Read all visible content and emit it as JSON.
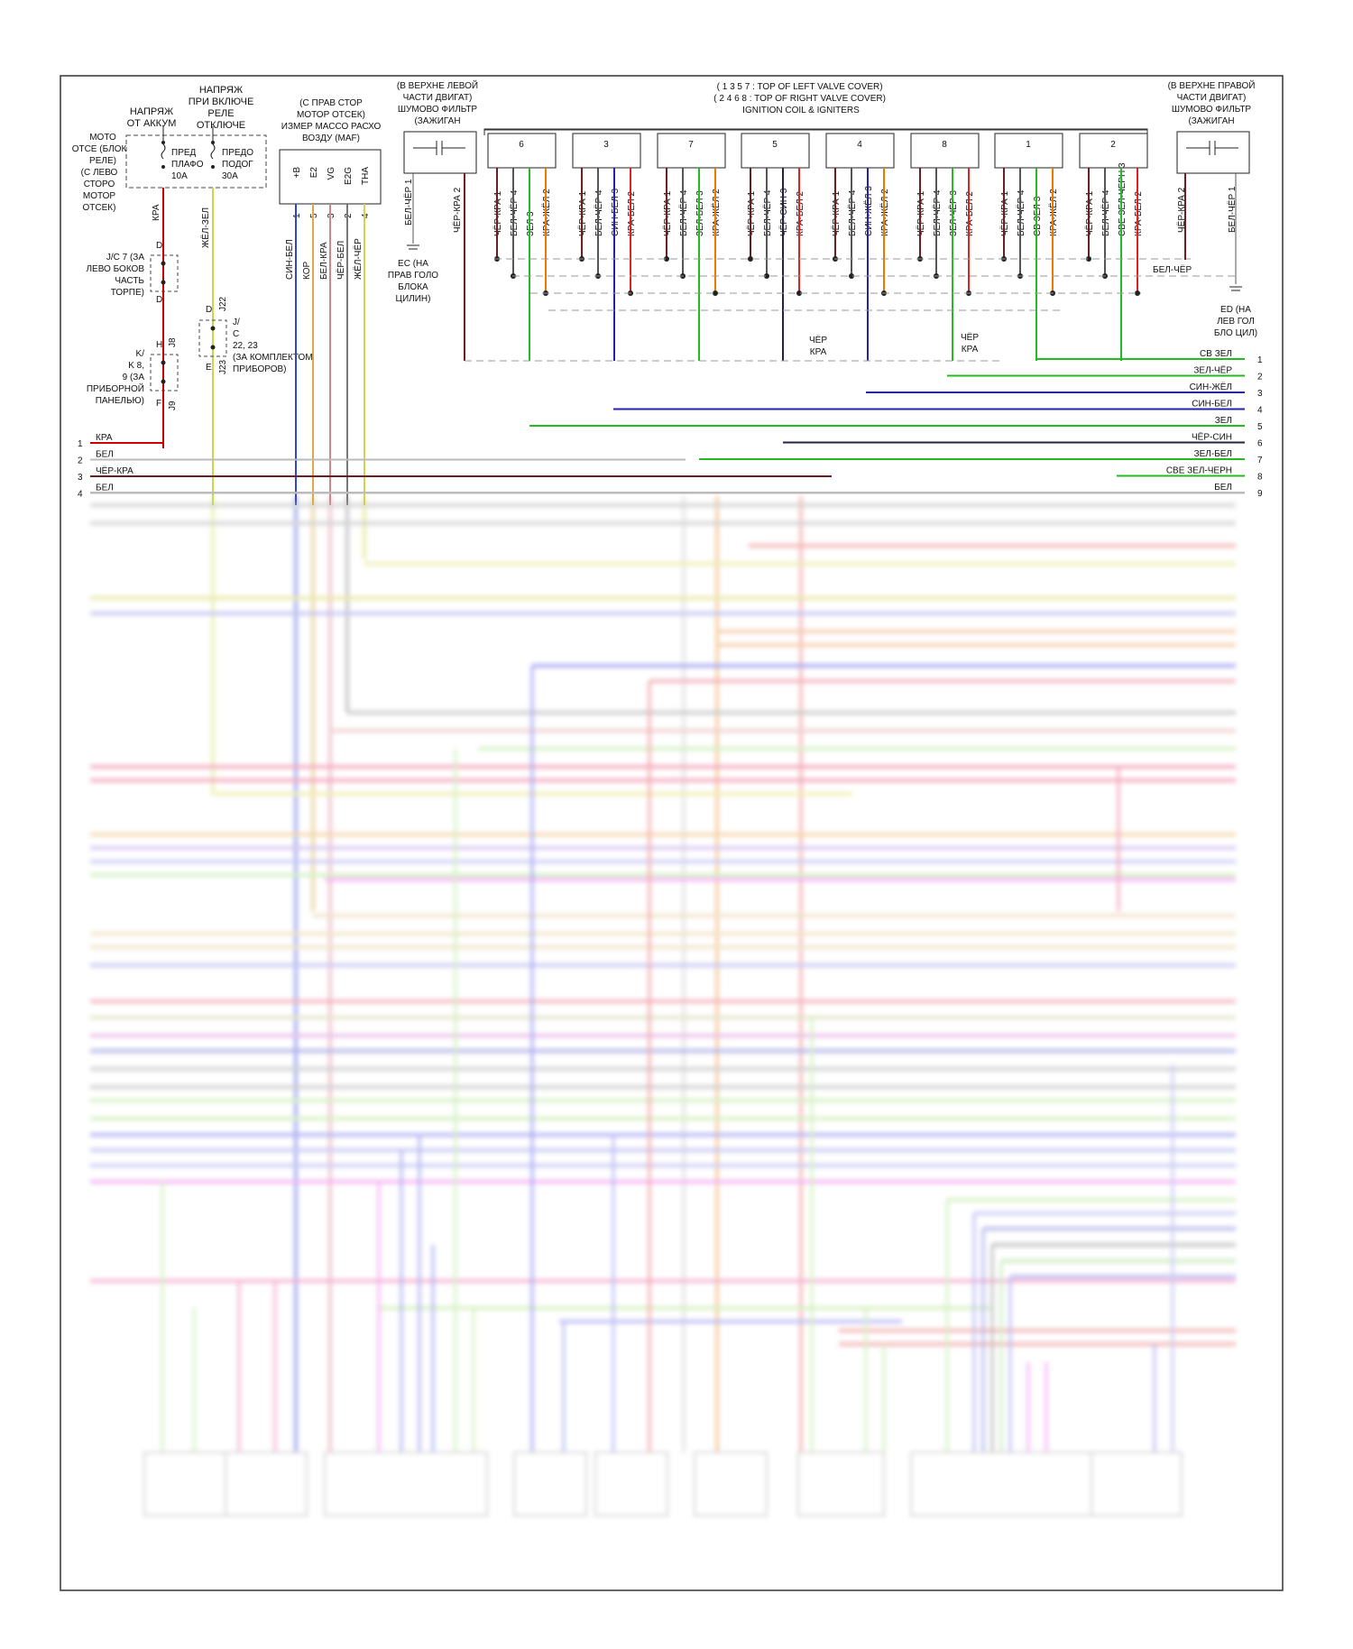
{
  "top_labels": {
    "batt_supply": "НАПРЯЖ ОТ АККУМ",
    "ign_supply": "НАПРЯЖ ПРИ ВКЛЮЧЕ РЕЛЕ ОТКЛЮЧЕ",
    "engine_relay": "МОТО ОТСЕ (БЛОК РЕЛЕ) (С ЛЕВО СТОРО МОТОР ОТСЕК)",
    "fuse1_name": "ПРЕД ПЛАФО",
    "fuse1_amp": "10A",
    "fuse2_name": "ПРЕДО ПОДОГ",
    "fuse2_amp": "30A",
    "jc7": "J/C 7 (ЗА ЛЕВО БОКОВ ЧАСТЬ ТОРПЕ)",
    "k8": "K/ K 8, 9 (ЗА ПРИБОРНОЙ ПАНЕЛЬЮ)",
    "jc22": "J/ C 22, 23 (ЗА КОМПЛЕКТОМ ПРИБОРОВ)",
    "maf_title": "(С ПРАВ СТОР МОТОР ОТСЕК) ИЗМЕР МАССО РАСХО ВОЗДУ (MAF)",
    "maf_pins": [
      "+B",
      "E2",
      "VG",
      "E2G",
      "THA"
    ],
    "maf_nums": [
      "1",
      "5",
      "3",
      "2",
      "4"
    ],
    "maf_wires": [
      "СИН-БЕЛ",
      "КОР",
      "БЕЛ-КРА",
      "ЧЁР-БЕЛ",
      "ЖЁЛ-ЧЁР"
    ],
    "left_filter": "(В ВЕРХНЕ ЛЕВОЙ ЧАСТИ ДВИГАТ) ШУМОВО ФИЛЬТР (ЗАЖИГАН",
    "right_filter": "(В ВЕРХНЕ ПРАВОЙ ЧАСТИ ДВИГАТ) ШУМОВО ФИЛЬТР (ЗАЖИГАН",
    "coil_title_1": "( 1 3 5 7 : TOP OF LEFT VALVE COVER)",
    "coil_title_2": "( 2 4 6 8 : TOP OF RIGHT VALVE COVER)",
    "coil_title_3": "IGNITION COIL & IGNITERS",
    "ec": "EC (НА ПРАВ ГОЛО БЛОКА ЦИЛИН)",
    "ed": "ED (НА ЛЕВ ГОЛ БЛО ЦИЛ)",
    "chr_kra": "ЧЁР КРА",
    "bel_cher": "БЕЛ-ЧЁР",
    "cher_kra_v": "ЧЁР-КРА",
    "kra_v": "КРА",
    "zhel_zel_v": "ЖЁЛ-ЗЕЛ",
    "conn_D": "D",
    "conn_H": "H",
    "conn_F": "F",
    "conn_E": "E",
    "conn_J8": "J8",
    "conn_J9": "J9",
    "conn_J22": "J22",
    "conn_J23": "J23",
    "left_filter_wire1": "БЕЛ-ЧЁР 1",
    "left_filter_wire2": "ЧЁР-КРА 2",
    "right_filter_wire1": "ЧЁР-КРА 2",
    "right_filter_wire2": "БЕЛ-ЧЁР 1"
  },
  "coils": [
    {
      "num": "6",
      "wires": [
        "ЧЁР-КРА 1",
        "БЕЛ-ЧЁР 4",
        "ЗЕЛ 3",
        "КРА-ЖЁЛ 2"
      ]
    },
    {
      "num": "3",
      "wires": [
        "ЧЁР-КРА 1",
        "БЕЛ-ЧЁР 4",
        "СИН-БЕЛ 3",
        "КРА-БЕЛ 2"
      ]
    },
    {
      "num": "7",
      "wires": [
        "ЧЁР-КРА 1",
        "БЕЛ-ЧЁР 4",
        "ЗЕЛ-БЕЛ 3",
        "КРА-ЖЁЛ 2"
      ]
    },
    {
      "num": "5",
      "wires": [
        "ЧЁР-КРА 1",
        "БЕЛ-ЧЁР 4",
        "ЧЁР-СИН 3",
        "КРА-БЕЛ 2"
      ]
    },
    {
      "num": "4",
      "wires": [
        "ЧЁР-КРА 1",
        "БЕЛ-ЧЁР 4",
        "СИН-ЖЁЛ 3",
        "КРА-ЖЁЛ 2"
      ]
    },
    {
      "num": "8",
      "wires": [
        "ЧЁР-КРА 1",
        "БЕЛ-ЧЁР 4",
        "ЗЕЛ-ЧЁР 3",
        "КРА-БЕЛ 2"
      ]
    },
    {
      "num": "1",
      "wires": [
        "ЧЁР-КРА 1",
        "БЕЛ-ЧЁР 4",
        "СВ ЗЕЛ 3",
        "КРА-ЖЁЛ 2"
      ]
    },
    {
      "num": "2",
      "wires": [
        "ЧЁР-КРА 1",
        "БЕЛ-ЧЁР 4",
        "СВЕ ЗЕЛ-ЧЕРН 3",
        "КРА-БЕЛ 2"
      ]
    }
  ],
  "right_outputs": [
    {
      "num": "1",
      "label": "СВ ЗЕЛ",
      "color": "#22bb22"
    },
    {
      "num": "2",
      "label": "ЗЕЛ-ЧЁР",
      "color": "#22bb22"
    },
    {
      "num": "3",
      "label": "СИН-ЖЁЛ",
      "color": "#2222aa"
    },
    {
      "num": "4",
      "label": "СИН-БЕЛ",
      "color": "#2222aa"
    },
    {
      "num": "5",
      "label": "ЗЕЛ",
      "color": "#22bb22"
    },
    {
      "num": "6",
      "label": "ЧЁР-СИН",
      "color": "#222244"
    },
    {
      "num": "7",
      "label": "ЗЕЛ-БЕЛ",
      "color": "#22bb22"
    },
    {
      "num": "8",
      "label": "СВЕ ЗЕЛ-ЧЕРН",
      "color": "#22bb22"
    },
    {
      "num": "9",
      "label": "БЕЛ",
      "color": "#bbbbbb"
    }
  ],
  "left_outputs": [
    {
      "num": "1",
      "label": "КРА",
      "color": "#cc0000"
    },
    {
      "num": "2",
      "label": "БЕЛ",
      "color": "#bbbbbb"
    },
    {
      "num": "3",
      "label": "ЧЁР-КРА",
      "color": "#6b1f1f"
    },
    {
      "num": "4",
      "label": "БЕЛ",
      "color": "#bbbbbb"
    }
  ]
}
